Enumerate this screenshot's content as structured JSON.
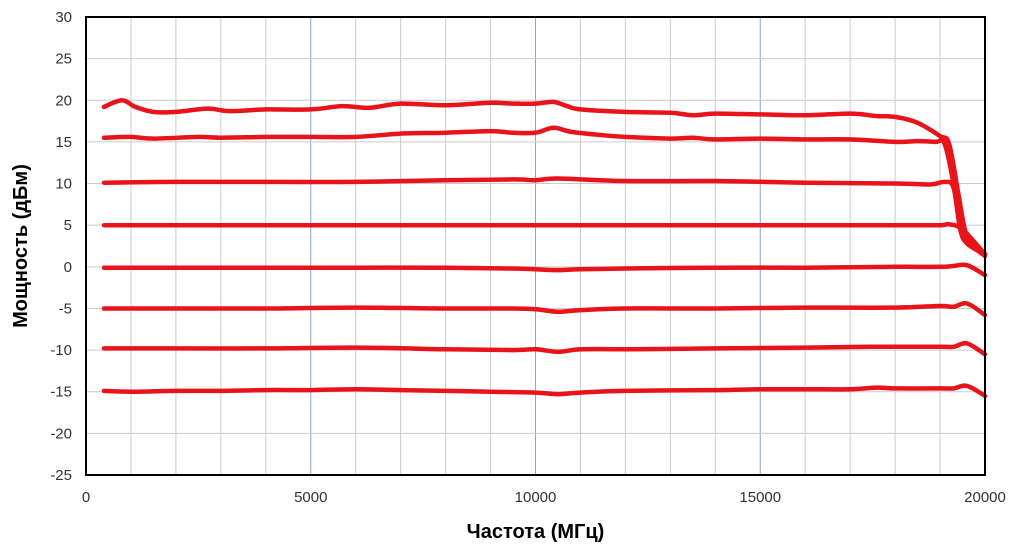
{
  "chart_data": {
    "type": "line",
    "title": "",
    "xlabel": "Частота (МГц)",
    "ylabel": "Мощность (дБм)",
    "xlim": [
      0,
      20000
    ],
    "ylim": [
      -25,
      30
    ],
    "x_ticks": [
      0,
      5000,
      10000,
      15000,
      20000
    ],
    "y_ticks": [
      30,
      25,
      20,
      15,
      10,
      5,
      0,
      -5,
      -10,
      -15,
      -20,
      -25
    ],
    "x_tick_labels": [
      "0",
      "5000",
      "10000",
      "15000",
      "20000"
    ],
    "y_tick_labels": [
      "30",
      "25",
      "20",
      "15",
      "10",
      "5",
      "0",
      "-5",
      "-10",
      "-15",
      "-20",
      "-25"
    ],
    "grid": true,
    "legend": "none",
    "series_color": "#e8141a",
    "series": [
      {
        "x": [
          400,
          800,
          1100,
          1500,
          2000,
          2700,
          3200,
          4000,
          5000,
          5700,
          6300,
          7000,
          8000,
          9000,
          9500,
          10000,
          10400,
          10700,
          11000,
          12000,
          13000,
          13500,
          14000,
          15000,
          16000,
          17000,
          17600,
          18000,
          18500,
          19000,
          19200,
          19400,
          19550,
          19700,
          20000
        ],
        "y": [
          19.2,
          20.0,
          19.2,
          18.6,
          18.6,
          19.0,
          18.7,
          18.9,
          18.9,
          19.3,
          19.1,
          19.6,
          19.4,
          19.7,
          19.6,
          19.6,
          19.8,
          19.3,
          18.9,
          18.6,
          18.5,
          18.2,
          18.4,
          18.3,
          18.2,
          18.4,
          18.1,
          18.0,
          17.3,
          15.7,
          14.8,
          9.0,
          4.5,
          2.8,
          1.5
        ]
      },
      {
        "x": [
          400,
          1000,
          1500,
          2500,
          3000,
          4000,
          5000,
          6000,
          7000,
          8000,
          9000,
          9500,
          10000,
          10400,
          10800,
          11500,
          12000,
          13000,
          13500,
          14000,
          15000,
          16000,
          17000,
          18000,
          18500,
          18900,
          19100,
          19300,
          19450,
          19600,
          20000
        ],
        "y": [
          15.5,
          15.6,
          15.4,
          15.6,
          15.5,
          15.6,
          15.6,
          15.6,
          16.0,
          16.1,
          16.3,
          16.1,
          16.1,
          16.7,
          16.2,
          15.8,
          15.6,
          15.4,
          15.5,
          15.3,
          15.4,
          15.3,
          15.3,
          15.0,
          15.1,
          15.0,
          14.8,
          10.0,
          4.5,
          3.0,
          1.3
        ]
      },
      {
        "x": [
          400,
          2000,
          4000,
          6000,
          8000,
          9500,
          10000,
          10500,
          12000,
          14000,
          16000,
          18000,
          18800,
          19100,
          19300,
          19450,
          19600,
          20000
        ],
        "y": [
          10.1,
          10.2,
          10.2,
          10.2,
          10.4,
          10.5,
          10.4,
          10.6,
          10.3,
          10.3,
          10.1,
          10.0,
          9.9,
          10.2,
          9.5,
          4.5,
          2.8,
          1.5
        ]
      },
      {
        "x": [
          400,
          2000,
          4000,
          6000,
          8000,
          10000,
          12000,
          14000,
          16000,
          18000,
          19000,
          19200,
          19500,
          20000
        ],
        "y": [
          5.0,
          5.0,
          5.0,
          5.0,
          5.0,
          5.0,
          5.0,
          5.0,
          5.0,
          5.0,
          5.0,
          5.1,
          4.5,
          1.5
        ]
      },
      {
        "x": [
          400,
          2000,
          4000,
          6000,
          8000,
          9500,
          10000,
          10500,
          11000,
          12000,
          14000,
          16000,
          18000,
          19000,
          19300,
          19600,
          20000
        ],
        "y": [
          -0.1,
          -0.1,
          -0.1,
          -0.1,
          -0.1,
          -0.2,
          -0.3,
          -0.4,
          -0.3,
          -0.2,
          -0.1,
          -0.1,
          0.0,
          0.0,
          0.1,
          0.2,
          -1.0
        ]
      },
      {
        "x": [
          400,
          2000,
          4000,
          6000,
          8000,
          9500,
          10000,
          10500,
          11000,
          12000,
          14000,
          16000,
          18000,
          19000,
          19300,
          19600,
          20000
        ],
        "y": [
          -5.0,
          -5.0,
          -5.0,
          -4.9,
          -5.0,
          -5.0,
          -5.1,
          -5.4,
          -5.2,
          -5.0,
          -5.0,
          -4.9,
          -4.9,
          -4.7,
          -4.8,
          -4.4,
          -5.8
        ]
      },
      {
        "x": [
          400,
          2000,
          4000,
          6000,
          8000,
          9500,
          10000,
          10500,
          11000,
          12000,
          14000,
          16000,
          17500,
          19000,
          19300,
          19600,
          20000
        ],
        "y": [
          -9.8,
          -9.8,
          -9.8,
          -9.7,
          -9.9,
          -10.0,
          -9.9,
          -10.2,
          -9.9,
          -9.9,
          -9.8,
          -9.7,
          -9.6,
          -9.6,
          -9.6,
          -9.2,
          -10.5
        ]
      },
      {
        "x": [
          400,
          1000,
          2000,
          3000,
          4000,
          5000,
          6000,
          7000,
          8000,
          9000,
          10000,
          10500,
          11000,
          12000,
          14000,
          15000,
          16000,
          17000,
          17600,
          18000,
          19000,
          19300,
          19600,
          20000
        ],
        "y": [
          -14.9,
          -15.0,
          -14.9,
          -14.9,
          -14.8,
          -14.8,
          -14.7,
          -14.8,
          -14.9,
          -15.0,
          -15.1,
          -15.3,
          -15.1,
          -14.9,
          -14.8,
          -14.7,
          -14.7,
          -14.7,
          -14.5,
          -14.6,
          -14.6,
          -14.6,
          -14.3,
          -15.5
        ]
      }
    ]
  }
}
